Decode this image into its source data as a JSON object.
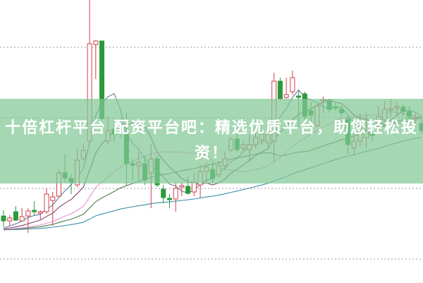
{
  "banner": {
    "text": "十倍杠杆平台 配资平台吧：精选优质平台，助您轻松投资！"
  },
  "chart_data": {
    "type": "candlestick",
    "title": "",
    "xlabel": "",
    "ylabel": "",
    "ylim": [
      0,
      40
    ],
    "grid": "horizontal-dotted",
    "gridlines": [
      33.3,
      23.3,
      13.3,
      3.3
    ],
    "colors": {
      "up": "#d0404a",
      "down": "#2a9a3a",
      "ma5": "#5a7f9c",
      "ma10": "#7a4466",
      "ma20": "#e595d8",
      "ma30": "#4a7a4a",
      "ma60": "#3a8fa8",
      "grid": "#999999"
    },
    "moving_averages": [
      5,
      10,
      20,
      30,
      60
    ],
    "candles_ohlc": [
      [
        9.4,
        10.2,
        7.8,
        8.7
      ],
      [
        8.7,
        9.5,
        8.0,
        9.1
      ],
      [
        10.0,
        10.8,
        8.7,
        8.8
      ],
      [
        8.7,
        10.5,
        8.7,
        9.3
      ],
      [
        9.4,
        10.5,
        7.0,
        10.1
      ],
      [
        10.2,
        11.5,
        9.5,
        10.0
      ],
      [
        9.8,
        10.2,
        8.8,
        10.0
      ],
      [
        10.0,
        13.3,
        9.7,
        12.5
      ],
      [
        11.6,
        12.8,
        8.0,
        12.1
      ],
      [
        12.2,
        16.0,
        12.0,
        15.5
      ],
      [
        15.5,
        18.2,
        14.2,
        14.8
      ],
      [
        14.7,
        15.3,
        12.5,
        14.2
      ],
      [
        13.8,
        19.0,
        13.5,
        17.3
      ],
      [
        17.5,
        19.5,
        17.2,
        18.7
      ],
      [
        20.0,
        40.0,
        19.5,
        33.8
      ],
      [
        33.7,
        34.3,
        28.8,
        34.2
      ],
      [
        34.2,
        34.2,
        23.0,
        23.2
      ],
      [
        20.0,
        23.5,
        19.5,
        21.5
      ],
      [
        21.7,
        23.0,
        20.0,
        21.0
      ],
      [
        21.7,
        23.2,
        20.5,
        22.5
      ],
      [
        21.0,
        24.0,
        13.7,
        16.8
      ],
      [
        16.8,
        17.5,
        14.5,
        16.6
      ],
      [
        16.5,
        18.5,
        14.5,
        17.0
      ],
      [
        16.8,
        18.0,
        13.8,
        14.5
      ],
      [
        15.5,
        19.5,
        10.5,
        17.5
      ],
      [
        17.5,
        18.0,
        13.5,
        13.8
      ],
      [
        13.2,
        13.8,
        11.2,
        12.0
      ],
      [
        11.9,
        12.5,
        10.5,
        11.7
      ],
      [
        11.8,
        14.2,
        10.0,
        13.3
      ],
      [
        13.5,
        14.2,
        12.2,
        13.7
      ],
      [
        13.6,
        15.0,
        12.4,
        12.6
      ],
      [
        12.8,
        15.5,
        12.2,
        14.2
      ],
      [
        13.8,
        16.7,
        12.0,
        15.7
      ],
      [
        15.7,
        17.0,
        14.0,
        16.3
      ],
      [
        16.0,
        17.0,
        14.0,
        14.7
      ],
      [
        15.3,
        17.2,
        14.8,
        16.5
      ],
      [
        16.5,
        18.5,
        16.0,
        17.5
      ],
      [
        18.7,
        20.5,
        18.5,
        20.3
      ],
      [
        20.3,
        21.0,
        18.5,
        18.8
      ],
      [
        19.0,
        20.0,
        18.5,
        19.5
      ],
      [
        18.8,
        21.0,
        17.0,
        19.5
      ],
      [
        19.5,
        21.2,
        19.0,
        20.5
      ],
      [
        20.2,
        21.7,
        19.5,
        21.0
      ],
      [
        19.8,
        22.0,
        19.0,
        21.0
      ],
      [
        20.0,
        29.7,
        17.0,
        28.5
      ],
      [
        28.5,
        29.0,
        25.7,
        26.0
      ],
      [
        26.2,
        29.0,
        26.0,
        26.6
      ],
      [
        27.0,
        30.0,
        26.6,
        29.0
      ],
      [
        26.4,
        27.2,
        22.0,
        26.2
      ],
      [
        26.7,
        27.0,
        22.5,
        23.5
      ],
      [
        24.3,
        25.5,
        22.0,
        23.7
      ],
      [
        22.2,
        25.2,
        22.0,
        25.0
      ],
      [
        25.7,
        26.3,
        24.0,
        25.9
      ],
      [
        25.7,
        26.0,
        24.0,
        24.5
      ],
      [
        24.9,
        25.5,
        24.3,
        24.7
      ],
      [
        24.5,
        25.0,
        23.5,
        24.0
      ],
      [
        23.1,
        23.5,
        18.2,
        19.5
      ],
      [
        19.0,
        21.0,
        18.0,
        20.0
      ],
      [
        20.0,
        24.0,
        19.2,
        22.0
      ],
      [
        20.5,
        24.0,
        19.0,
        21.5
      ],
      [
        21.2,
        22.5,
        20.0,
        20.8
      ],
      [
        22.0,
        25.0,
        21.5,
        23.5
      ],
      [
        23.0,
        25.7,
        22.2,
        24.5
      ],
      [
        24.4,
        26.0,
        23.5,
        24.6
      ],
      [
        24.7,
        25.5,
        23.5,
        24.9
      ],
      [
        24.8,
        25.2,
        23.5,
        24.2
      ],
      [
        24.2,
        25.0,
        23.0,
        23.5
      ],
      [
        23.1,
        24.0,
        22.0,
        23.3
      ],
      [
        22.5,
        23.2,
        21.0,
        21.5
      ]
    ]
  }
}
